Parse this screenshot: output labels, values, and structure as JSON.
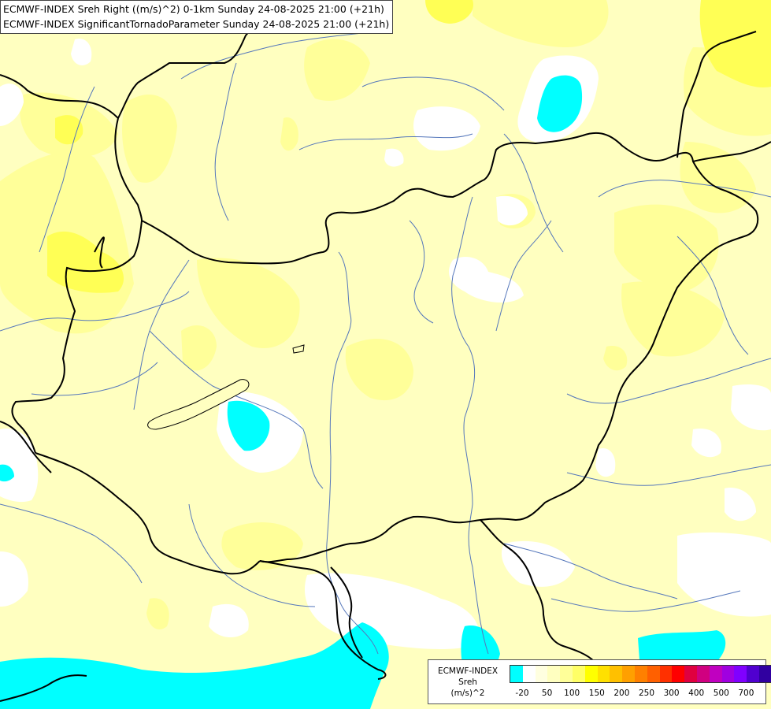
{
  "titles": {
    "line1": "ECMWF-INDEX Sreh Right ((m/s)^2) 0-1km Sunday 24-08-2025 21:00 (+21h)",
    "line2": "ECMWF-INDEX SignificantTornadoParameter Sunday 24-08-2025 21:00 (+21h)"
  },
  "legend": {
    "source": "ECMWF-INDEX",
    "parameter": "Sreh",
    "unit": "(m/s)^2",
    "ticks": [
      "-20",
      "50",
      "100",
      "150",
      "200",
      "250",
      "300",
      "400",
      "500",
      "700"
    ],
    "colors": [
      "#00ffff",
      "#ffffff",
      "#ffffe0",
      "#ffffc0",
      "#ffff99",
      "#ffff66",
      "#ffff00",
      "#ffe000",
      "#ffc000",
      "#ffa000",
      "#ff8000",
      "#ff6000",
      "#ff3000",
      "#ff0000",
      "#e00040",
      "#d00080",
      "#c000c0",
      "#a000e0",
      "#8000ff",
      "#5000d0",
      "#3000a0",
      "#000080"
    ]
  },
  "colors": {
    "background": "#ffffc0",
    "light_yellow": "#ffff99",
    "yellow": "#ffff55",
    "white": "#ffffff",
    "cyan": "#00ffff",
    "border": "#000000",
    "river": "#5577bb"
  }
}
